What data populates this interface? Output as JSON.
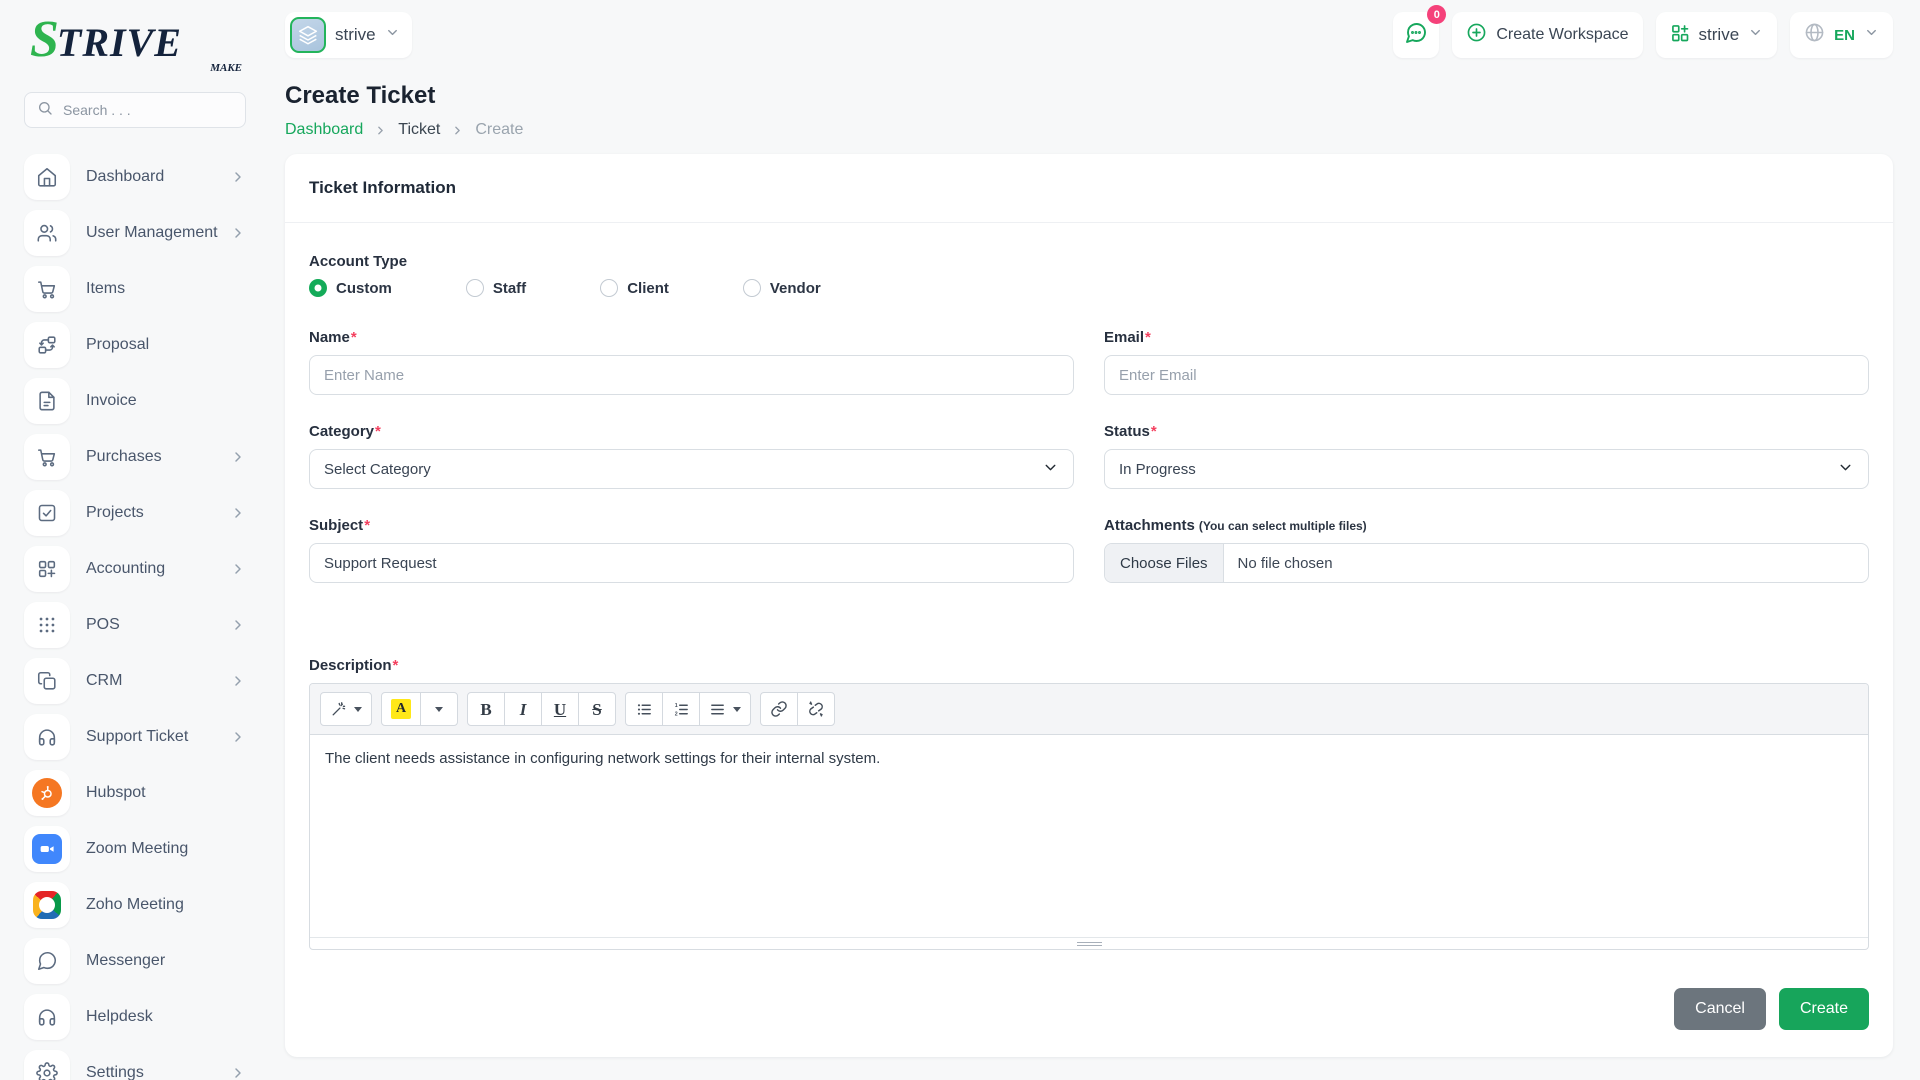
{
  "brand": {
    "name": "STRIVE",
    "name_initial": "S",
    "name_rest": "TRIVE",
    "tagline": "MAKE"
  },
  "search": {
    "placeholder": "Search . . ."
  },
  "topbar": {
    "workspace_switcher": {
      "label": "strive",
      "icon": "layers-icon"
    },
    "chat": {
      "icon": "chat-bubble-icon",
      "badge": "0"
    },
    "create_workspace": {
      "label": "Create Workspace",
      "icon": "plus-circle-icon"
    },
    "workspace_menu": {
      "label": "strive",
      "icon": "grid-plus-icon"
    },
    "language": {
      "label": "EN",
      "icon": "globe-icon"
    }
  },
  "sidebar": {
    "items": [
      {
        "label": "Dashboard",
        "icon": "home-icon",
        "has_submenu": true
      },
      {
        "label": "User Management",
        "icon": "users-icon",
        "has_submenu": true
      },
      {
        "label": "Items",
        "icon": "cart-icon",
        "has_submenu": false
      },
      {
        "label": "Proposal",
        "icon": "swap-boxes-icon",
        "has_submenu": false
      },
      {
        "label": "Invoice",
        "icon": "file-text-icon",
        "has_submenu": false
      },
      {
        "label": "Purchases",
        "icon": "cart-icon",
        "has_submenu": true
      },
      {
        "label": "Projects",
        "icon": "check-square-icon",
        "has_submenu": true
      },
      {
        "label": "Accounting",
        "icon": "grid-plus-dark-icon",
        "has_submenu": true
      },
      {
        "label": "POS",
        "icon": "dots-grid-icon",
        "has_submenu": true
      },
      {
        "label": "CRM",
        "icon": "copy-icon",
        "has_submenu": true
      },
      {
        "label": "Support Ticket",
        "icon": "headphones-icon",
        "has_submenu": true
      },
      {
        "label": "Hubspot",
        "icon": "hubspot-icon",
        "has_submenu": false
      },
      {
        "label": "Zoom Meeting",
        "icon": "zoom-icon",
        "has_submenu": false
      },
      {
        "label": "Zoho Meeting",
        "icon": "zoho-icon",
        "has_submenu": false
      },
      {
        "label": "Messenger",
        "icon": "message-circle-icon",
        "has_submenu": false
      },
      {
        "label": "Helpdesk",
        "icon": "headphones-icon",
        "has_submenu": false
      },
      {
        "label": "Settings",
        "icon": "gear-icon",
        "has_submenu": true
      }
    ]
  },
  "page": {
    "title": "Create Ticket",
    "breadcrumb": [
      {
        "label": "Dashboard",
        "style": "link"
      },
      {
        "label": "Ticket",
        "style": "current"
      },
      {
        "label": "Create",
        "style": "muted"
      }
    ]
  },
  "card": {
    "title": "Ticket Information"
  },
  "form": {
    "account_type": {
      "label": "Account Type",
      "options": [
        "Custom",
        "Staff",
        "Client",
        "Vendor"
      ],
      "selected_index": 0
    },
    "name": {
      "label": "Name",
      "required_mark": "*",
      "placeholder": "Enter Name"
    },
    "email": {
      "label": "Email",
      "required_mark": "*",
      "placeholder": "Enter Email"
    },
    "category": {
      "label": "Category",
      "required_mark": "*",
      "selected": "Select Category"
    },
    "status": {
      "label": "Status",
      "required_mark": "*",
      "selected": "In Progress"
    },
    "subject": {
      "label": "Subject",
      "required_mark": "*",
      "value": "Support Request"
    },
    "attachments": {
      "label": "Attachments",
      "hint": "(You can select multiple files)",
      "button_label": "Choose Files",
      "file_status": "No file chosen"
    },
    "description": {
      "label": "Description",
      "required_mark": "*",
      "value": "The client needs assistance in configuring network settings for their internal system."
    }
  },
  "editor": {
    "toolbar": [
      {
        "group": "style",
        "buttons": [
          {
            "icon": "magic-wand-icon",
            "caret": true
          }
        ]
      },
      {
        "group": "color",
        "buttons": [
          {
            "icon": "font-color-icon"
          },
          {
            "icon": "caret-down-small-icon"
          }
        ]
      },
      {
        "group": "font",
        "buttons": [
          {
            "icon": "bold-icon",
            "glyph": "B",
            "glyph_style": "bold"
          },
          {
            "icon": "italic-icon",
            "glyph": "I",
            "glyph_style": "italic"
          },
          {
            "icon": "underline-icon",
            "glyph": "U",
            "glyph_style": "underline"
          },
          {
            "icon": "strikethrough-icon",
            "glyph": "S",
            "glyph_style": "strike"
          }
        ]
      },
      {
        "group": "paragraph",
        "buttons": [
          {
            "icon": "unordered-list-icon"
          },
          {
            "icon": "ordered-list-icon"
          },
          {
            "icon": "paragraph-align-icon",
            "caret": true
          }
        ]
      },
      {
        "group": "link",
        "buttons": [
          {
            "icon": "link-icon"
          },
          {
            "icon": "unlink-icon"
          }
        ]
      }
    ]
  },
  "actions": {
    "cancel_label": "Cancel",
    "create_label": "Create"
  },
  "colors": {
    "accent_green": "#16a75c",
    "badge_pink": "#f5417a",
    "hubspot_orange": "#f57722",
    "zoom_blue": "#4087fc",
    "cancel_gray": "#6c757d",
    "create_green": "#17a55b"
  }
}
